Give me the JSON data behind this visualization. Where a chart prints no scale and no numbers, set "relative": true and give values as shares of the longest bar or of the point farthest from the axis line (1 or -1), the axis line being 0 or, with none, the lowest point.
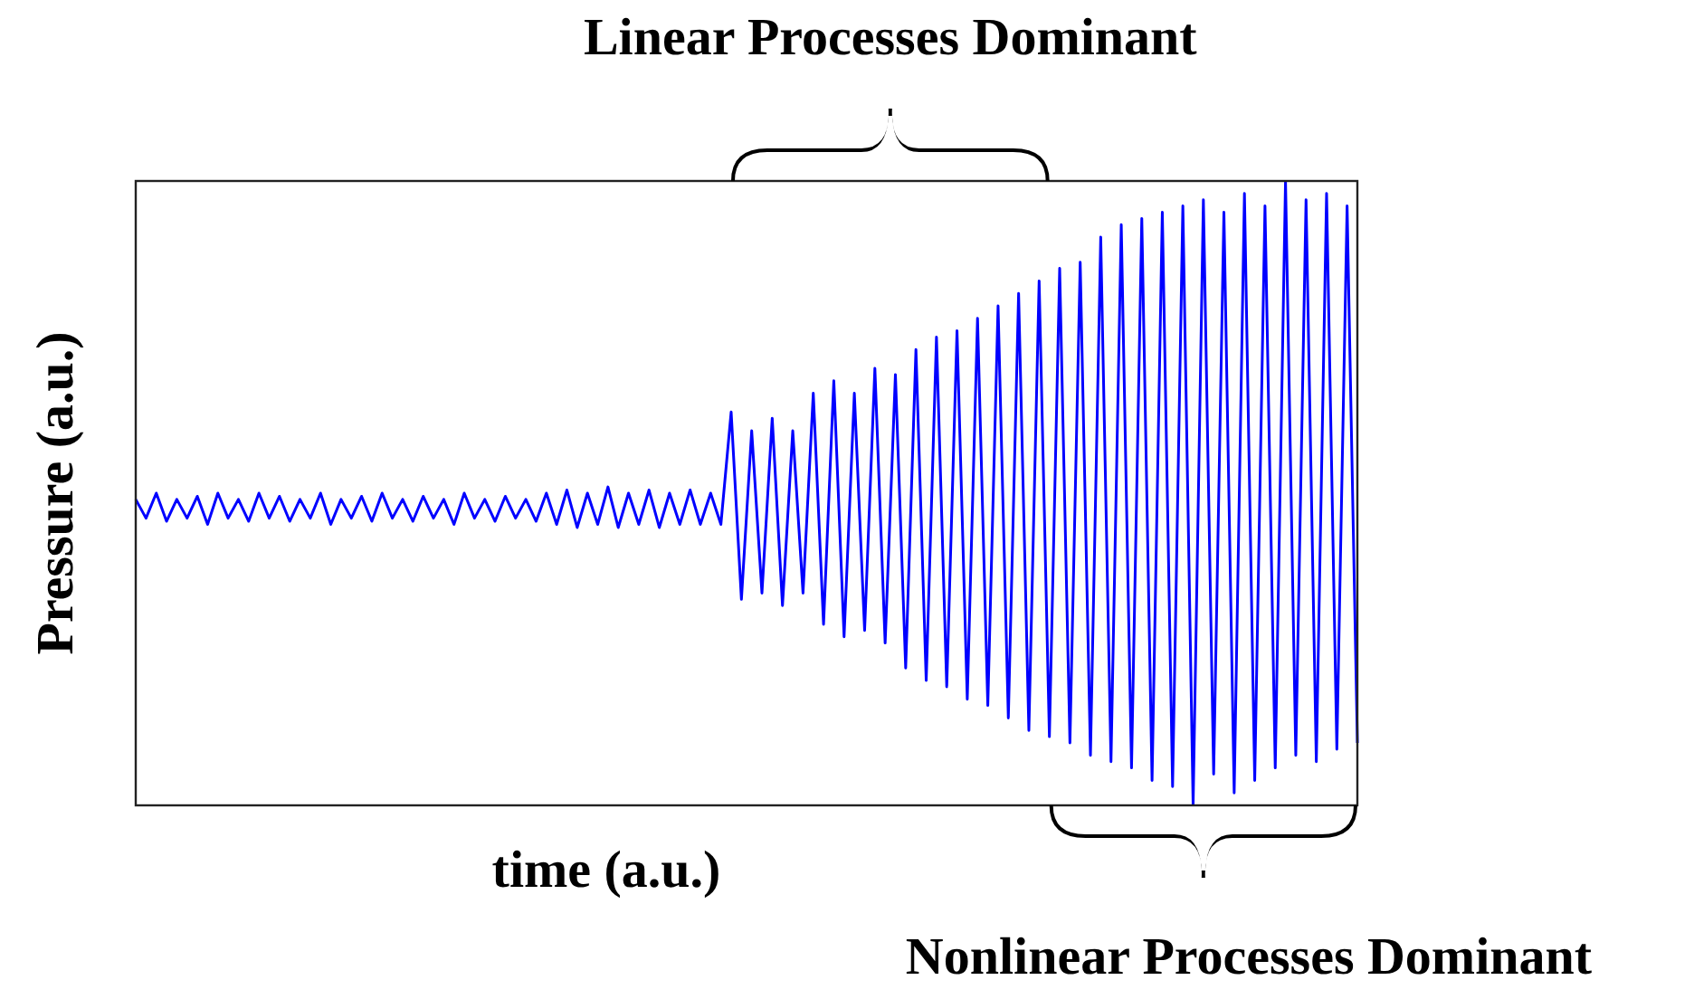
{
  "chart_data": {
    "type": "line",
    "relative": true,
    "xlabel": "time (a.u.)",
    "ylabel": "Pressure (a.u.)",
    "annotations": [
      "Linear Processes Dominant",
      "Nonlinear Processes Dominant"
    ],
    "categories": [
      null,
      null,
      null,
      null,
      null,
      null,
      null,
      null,
      null,
      null,
      null,
      null,
      null,
      null,
      null,
      null,
      null,
      null,
      null,
      null,
      null,
      null,
      null,
      null,
      null,
      null,
      null,
      null,
      null,
      null,
      null,
      null,
      null,
      null,
      null,
      null,
      null,
      null,
      null,
      null,
      null,
      null,
      null,
      null,
      null,
      null,
      null,
      null,
      null,
      null,
      null,
      null,
      null,
      null,
      null,
      null,
      null,
      null,
      null,
      null,
      null,
      null,
      null,
      null,
      null,
      null,
      null,
      null,
      null,
      null,
      null,
      null,
      null,
      null,
      null,
      null,
      null,
      null,
      null,
      null,
      null,
      null,
      null,
      null,
      null,
      null,
      null,
      null,
      null,
      null,
      null,
      null,
      null,
      null,
      null,
      null,
      null,
      null,
      null,
      null,
      null,
      null,
      null,
      null,
      null,
      null,
      null,
      null,
      null,
      null,
      null,
      null,
      null,
      null,
      null,
      null,
      null,
      null,
      null,
      null
    ],
    "series": [
      {
        "color": "#0000ff",
        "values": [
          0.49,
          0.46,
          0.5,
          0.455,
          0.49,
          0.46,
          0.495,
          0.45,
          0.5,
          0.46,
          0.49,
          0.455,
          0.5,
          0.46,
          0.495,
          0.455,
          0.49,
          0.46,
          0.5,
          0.45,
          0.49,
          0.46,
          0.495,
          0.455,
          0.5,
          0.46,
          0.49,
          0.455,
          0.495,
          0.46,
          0.49,
          0.45,
          0.5,
          0.46,
          0.49,
          0.455,
          0.495,
          0.46,
          0.49,
          0.455,
          0.5,
          0.45,
          0.505,
          0.445,
          0.5,
          0.45,
          0.51,
          0.445,
          0.5,
          0.45,
          0.505,
          0.445,
          0.5,
          0.45,
          0.505,
          0.45,
          0.5,
          0.45,
          0.63,
          0.33,
          0.6,
          0.34,
          0.62,
          0.32,
          0.6,
          0.34,
          0.66,
          0.29,
          0.68,
          0.27,
          0.66,
          0.28,
          0.7,
          0.26,
          0.69,
          0.22,
          0.73,
          0.2,
          0.75,
          0.19,
          0.76,
          0.17,
          0.78,
          0.16,
          0.8,
          0.14,
          0.82,
          0.12,
          0.84,
          0.11,
          0.86,
          0.1,
          0.87,
          0.08,
          0.91,
          0.07,
          0.93,
          0.06,
          0.94,
          0.04,
          0.95,
          0.03,
          0.96,
          0,
          0.97,
          0.05,
          0.95,
          0.02,
          0.98,
          0.04,
          0.96,
          0.06,
          1,
          0.08,
          0.97,
          0.07,
          0.98,
          0.09,
          0.96,
          0.1
        ]
      }
    ]
  }
}
